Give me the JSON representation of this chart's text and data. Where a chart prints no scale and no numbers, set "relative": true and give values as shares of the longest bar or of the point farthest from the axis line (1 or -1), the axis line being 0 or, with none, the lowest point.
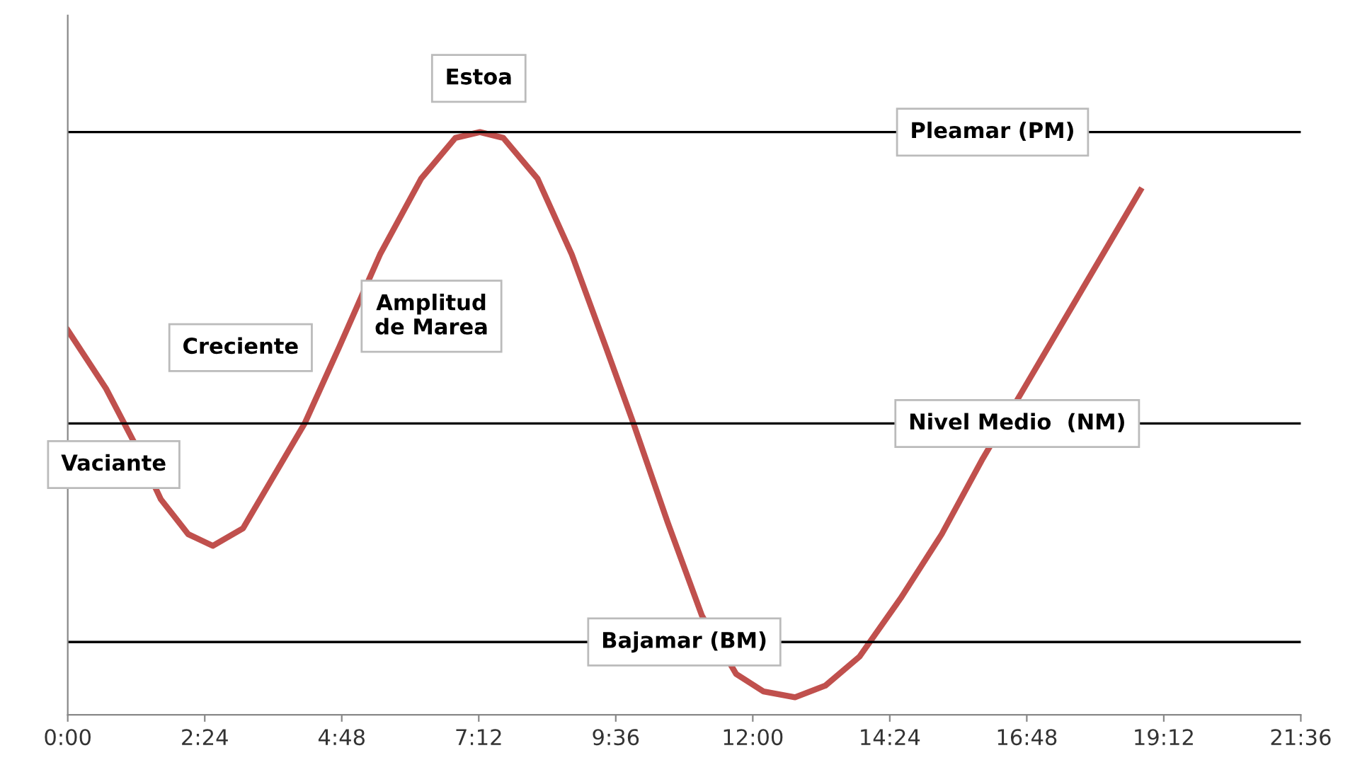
{
  "chart_data": {
    "type": "line",
    "relative": true,
    "x": [
      0,
      0.67,
      1.15,
      1.63,
      2.11,
      2.54,
      3.07,
      3.55,
      4.15,
      4.75,
      5.47,
      6.19,
      6.79,
      7.22,
      7.63,
      8.23,
      8.83,
      9.43,
      9.91,
      10.51,
      11.11,
      11.71,
      12.19,
      12.74,
      13.27,
      13.87,
      14.59,
      15.31,
      16.03,
      16.75,
      17.47,
      18.19,
      18.79
    ],
    "series": [
      {
        "color": "#c0504d",
        "values": [
          0.66,
          0.56,
          0.47,
          0.37,
          0.31,
          0.29,
          0.32,
          0.4,
          0.5,
          0.63,
          0.79,
          0.92,
          0.99,
          1.0,
          0.99,
          0.92,
          0.79,
          0.63,
          0.5,
          0.33,
          0.17,
          0.07,
          0.04,
          0.03,
          0.05,
          0.1,
          0.2,
          0.31,
          0.44,
          0.56,
          0.68,
          0.8,
          0.9
        ]
      }
    ],
    "xlim": [
      0,
      21.6
    ],
    "xticks": [
      {
        "value": 0,
        "label": "0:00"
      },
      {
        "value": 2.4,
        "label": "2:24"
      },
      {
        "value": 4.8,
        "label": "4:48"
      },
      {
        "value": 7.2,
        "label": "7:12"
      },
      {
        "value": 9.6,
        "label": "9:36"
      },
      {
        "value": 12,
        "label": "12:00"
      },
      {
        "value": 14.4,
        "label": "14:24"
      },
      {
        "value": 16.8,
        "label": "16:48"
      },
      {
        "value": 19.2,
        "label": "19:12"
      },
      {
        "value": 21.6,
        "label": "21:36"
      }
    ],
    "ref_lines": [
      {
        "axis": "y",
        "value": 1.0,
        "label": "Pleamar (PM)",
        "color": "#000000"
      },
      {
        "axis": "y",
        "value": 0.5,
        "label": "Nivel Medio  (NM)",
        "color": "#000000"
      },
      {
        "axis": "y",
        "value": 0.125,
        "label": "Bajamar (BM)",
        "color": "#000000"
      }
    ],
    "annotations": [
      {
        "text": "Estoa",
        "x": 7.2,
        "y": 1.0
      },
      {
        "text": "Creciente",
        "x": 4.75,
        "y": 0.63
      },
      "Amplitud\nde Marea",
      {
        "text": "Vaciante",
        "x": 1.15,
        "y": 0.47
      }
    ],
    "grid": false,
    "legend": false,
    "marker": "none",
    "line_style": "solid"
  }
}
